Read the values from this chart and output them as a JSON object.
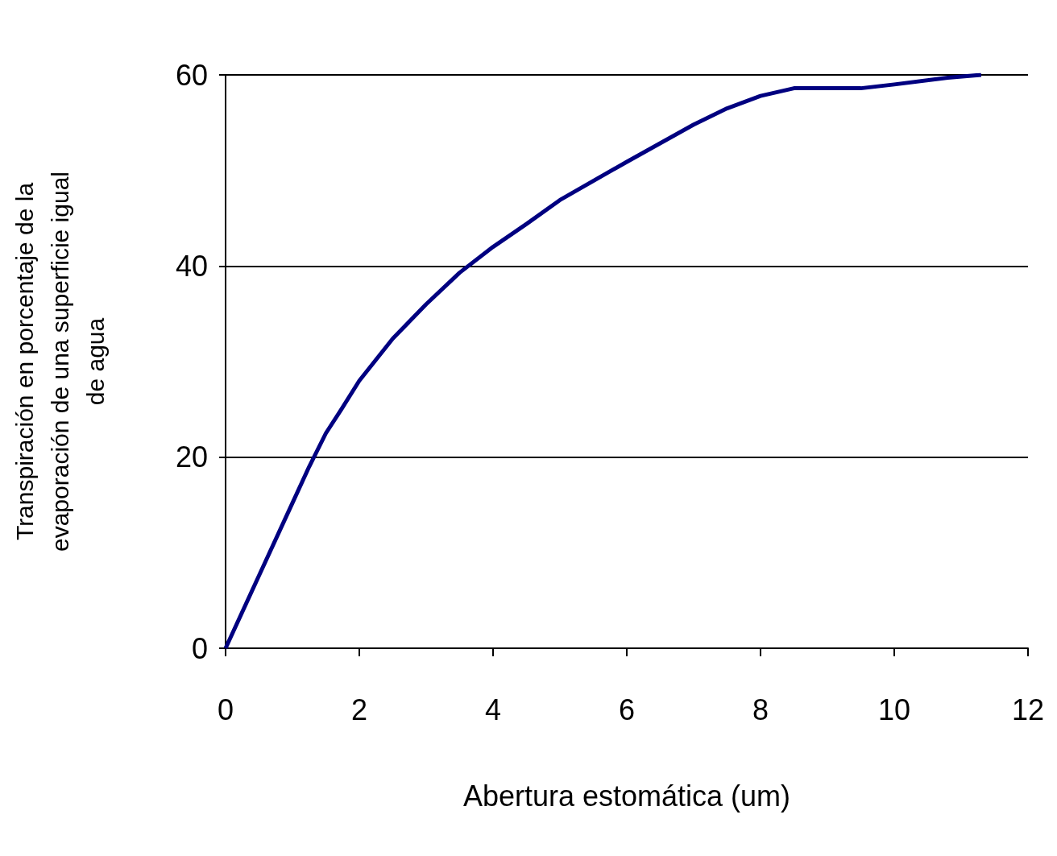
{
  "chart_data": {
    "type": "line",
    "xlabel": "Abertura estomática (um)",
    "ylabel": "Transpiración en porcentaje de la evaporación de una superficie igual de agua",
    "x": [
      0,
      0.5,
      1,
      1.25,
      1.5,
      1.75,
      2,
      2.5,
      3,
      3.5,
      4,
      4.5,
      5,
      6,
      7,
      7.5,
      8,
      8.5,
      9.5,
      10,
      10.8,
      11.3
    ],
    "series": [
      {
        "color": "#000080",
        "values": [
          0,
          7.6,
          15.2,
          19,
          22.5,
          25.2,
          28,
          32.4,
          36,
          39.3,
          42,
          44.4,
          46.9,
          50.9,
          54.8,
          56.5,
          57.8,
          58.6,
          58.6,
          59,
          59.7,
          60
        ]
      }
    ],
    "xlim": [
      0,
      12
    ],
    "xticks": [
      0,
      2,
      4,
      6,
      8,
      10,
      12
    ],
    "ylim": [
      0,
      60
    ],
    "yticks": [
      0,
      20,
      40,
      60
    ],
    "grid": "y",
    "marker": "none",
    "line_style": "solid"
  }
}
